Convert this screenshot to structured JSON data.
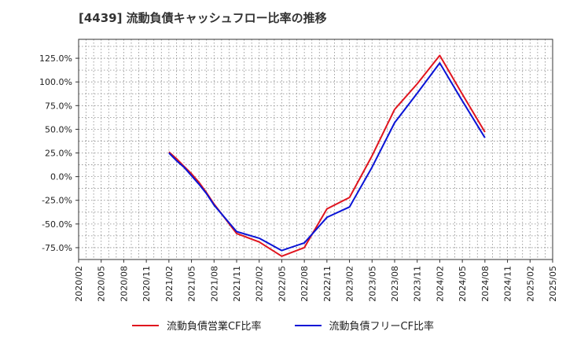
{
  "chart_data": {
    "type": "line",
    "title": "[4439]  流動負債キャッシュフロー比率の推移",
    "xlabel": "",
    "ylabel": "",
    "ylim": [
      -87.5,
      145
    ],
    "yticks": [
      125,
      100,
      75,
      50,
      25,
      0,
      -25,
      -50,
      -75
    ],
    "ytick_labels": [
      "125.0%",
      "100.0%",
      "75.0%",
      "50.0%",
      "25.0%",
      "0.0%",
      "-25.0%",
      "-50.0%",
      "-75.0%"
    ],
    "x_tick_labels": [
      "2020/02",
      "2020/05",
      "2020/08",
      "2020/11",
      "2021/02",
      "2021/05",
      "2021/08",
      "2021/11",
      "2022/02",
      "2022/05",
      "2022/08",
      "2022/11",
      "2023/02",
      "2023/05",
      "2023/08",
      "2023/11",
      "2024/02",
      "2024/05",
      "2024/08",
      "2024/11",
      "2025/02",
      "2025/05"
    ],
    "grid": true,
    "legend_position": "bottom",
    "series": [
      {
        "name": "流動負債営業CF比率",
        "color": "#e0141e",
        "x": [
          "2021/02",
          "2021/03",
          "2021/04",
          "2021/05",
          "2021/06",
          "2021/07",
          "2021/08",
          "2021/11",
          "2022/02",
          "2022/05",
          "2022/08",
          "2022/11",
          "2023/02",
          "2023/05",
          "2023/08",
          "2023/11",
          "2024/02",
          "2024/05",
          "2024/08"
        ],
        "values": [
          26,
          19,
          11,
          3,
          -6,
          -17,
          -29,
          -60,
          -69,
          -84,
          -75,
          -34,
          -22,
          22,
          71,
          98,
          128,
          87,
          47
        ]
      },
      {
        "name": "流動負債フリーCF比率",
        "color": "#0a14d6",
        "x": [
          "2021/02",
          "2021/03",
          "2021/04",
          "2021/05",
          "2021/06",
          "2021/07",
          "2021/08",
          "2021/11",
          "2022/02",
          "2022/05",
          "2022/08",
          "2022/11",
          "2023/02",
          "2023/05",
          "2023/08",
          "2023/11",
          "2024/02",
          "2024/05",
          "2024/08"
        ],
        "values": [
          25,
          17,
          10,
          1,
          -8,
          -18,
          -30,
          -58,
          -65,
          -78,
          -70,
          -43,
          -32,
          10,
          57,
          88,
          120,
          80,
          41
        ]
      }
    ]
  }
}
